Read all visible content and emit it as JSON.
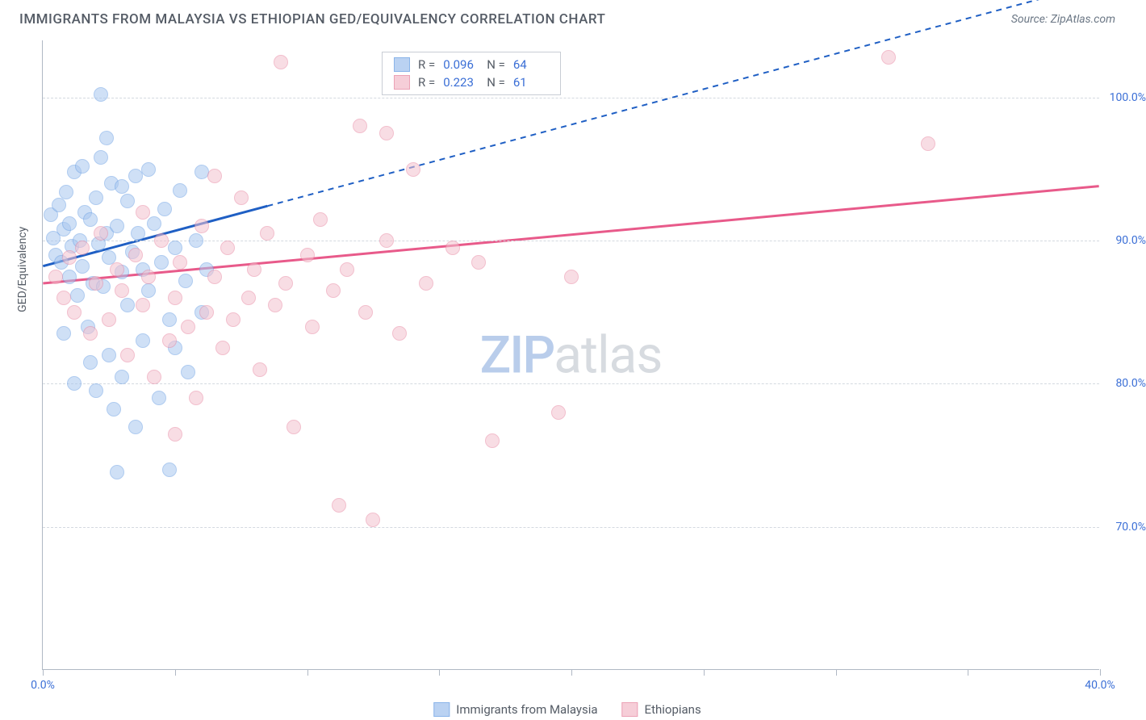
{
  "title": "IMMIGRANTS FROM MALAYSIA VS ETHIOPIAN GED/EQUIVALENCY CORRELATION CHART",
  "source": "Source: ZipAtlas.com",
  "y_axis_label": "GED/Equivalency",
  "watermark_a": "ZIP",
  "watermark_b": "atlas",
  "chart": {
    "type": "scatter",
    "x_range": [
      0,
      40
    ],
    "y_range": [
      60,
      104
    ],
    "y_ticks": [
      70,
      80,
      90,
      100
    ],
    "y_tick_labels": [
      "70.0%",
      "80.0%",
      "90.0%",
      "100.0%"
    ],
    "x_ticks": [
      0,
      5,
      10,
      15,
      20,
      25,
      30,
      35,
      40
    ],
    "x_tick_labels": {
      "0": "0.0%",
      "40": "40.0%"
    },
    "grid_color": "#d4d9e0",
    "axis_color": "#b0b8c4",
    "background": "#ffffff",
    "tick_label_color": "#3b6fd6",
    "series": [
      {
        "name": "Immigrants from Malaysia",
        "fill": "#a9c7ef",
        "stroke": "#6ea2e4",
        "fill_opacity": 0.55,
        "R": "0.096",
        "N": "64",
        "trend": {
          "color": "#1f5fc4",
          "width": 3,
          "solid_to_x": 8.5,
          "x1": 0,
          "y1": 88.2,
          "x2": 40,
          "y2": 108
        },
        "points": [
          [
            0.3,
            91.8
          ],
          [
            0.4,
            90.2
          ],
          [
            0.5,
            89.0
          ],
          [
            0.6,
            92.5
          ],
          [
            0.7,
            88.5
          ],
          [
            0.8,
            90.8
          ],
          [
            0.9,
            93.4
          ],
          [
            1.0,
            91.2
          ],
          [
            1.0,
            87.5
          ],
          [
            1.1,
            89.6
          ],
          [
            1.2,
            94.8
          ],
          [
            1.3,
            86.2
          ],
          [
            1.4,
            90.0
          ],
          [
            1.5,
            95.2
          ],
          [
            1.5,
            88.2
          ],
          [
            1.6,
            92.0
          ],
          [
            1.7,
            84.0
          ],
          [
            1.8,
            91.5
          ],
          [
            1.9,
            87.0
          ],
          [
            2.0,
            93.0
          ],
          [
            2.0,
            79.5
          ],
          [
            2.1,
            89.8
          ],
          [
            2.2,
            95.8
          ],
          [
            2.3,
            86.8
          ],
          [
            2.4,
            90.5
          ],
          [
            2.5,
            82.0
          ],
          [
            2.5,
            88.8
          ],
          [
            2.6,
            94.0
          ],
          [
            2.7,
            78.2
          ],
          [
            2.8,
            91.0
          ],
          [
            3.0,
            87.8
          ],
          [
            3.0,
            80.5
          ],
          [
            3.2,
            92.8
          ],
          [
            3.2,
            85.5
          ],
          [
            3.4,
            89.2
          ],
          [
            3.5,
            94.5
          ],
          [
            3.5,
            77.0
          ],
          [
            3.6,
            90.5
          ],
          [
            3.8,
            83.0
          ],
          [
            3.8,
            88.0
          ],
          [
            4.0,
            95.0
          ],
          [
            4.0,
            86.5
          ],
          [
            4.2,
            91.2
          ],
          [
            4.4,
            79.0
          ],
          [
            4.5,
            88.5
          ],
          [
            4.6,
            92.2
          ],
          [
            4.8,
            84.5
          ],
          [
            4.8,
            74.0
          ],
          [
            5.0,
            89.5
          ],
          [
            5.2,
            93.5
          ],
          [
            5.4,
            87.2
          ],
          [
            5.5,
            80.8
          ],
          [
            5.8,
            90.0
          ],
          [
            6.0,
            94.8
          ],
          [
            6.0,
            85.0
          ],
          [
            6.2,
            88.0
          ],
          [
            2.2,
            100.2
          ],
          [
            2.4,
            97.2
          ],
          [
            2.8,
            73.8
          ],
          [
            1.8,
            81.5
          ],
          [
            5.0,
            82.5
          ],
          [
            0.8,
            83.5
          ],
          [
            1.2,
            80.0
          ],
          [
            3.0,
            93.8
          ]
        ]
      },
      {
        "name": "Ethiopians",
        "fill": "#f4c2cf",
        "stroke": "#e88ba5",
        "fill_opacity": 0.55,
        "R": "0.223",
        "N": "61",
        "trend": {
          "color": "#e85a8a",
          "width": 3,
          "solid_to_x": 40,
          "x1": 0,
          "y1": 87.0,
          "x2": 40,
          "y2": 93.8
        },
        "points": [
          [
            0.5,
            87.5
          ],
          [
            0.8,
            86.0
          ],
          [
            1.0,
            88.8
          ],
          [
            1.2,
            85.0
          ],
          [
            1.5,
            89.5
          ],
          [
            1.8,
            83.5
          ],
          [
            2.0,
            87.0
          ],
          [
            2.2,
            90.5
          ],
          [
            2.5,
            84.5
          ],
          [
            2.8,
            88.0
          ],
          [
            3.0,
            86.5
          ],
          [
            3.2,
            82.0
          ],
          [
            3.5,
            89.0
          ],
          [
            3.8,
            85.5
          ],
          [
            4.0,
            87.5
          ],
          [
            4.2,
            80.5
          ],
          [
            4.5,
            90.0
          ],
          [
            4.8,
            83.0
          ],
          [
            5.0,
            86.0
          ],
          [
            5.2,
            88.5
          ],
          [
            5.5,
            84.0
          ],
          [
            5.8,
            79.0
          ],
          [
            6.0,
            91.0
          ],
          [
            6.2,
            85.0
          ],
          [
            6.5,
            87.5
          ],
          [
            6.8,
            82.5
          ],
          [
            7.0,
            89.5
          ],
          [
            7.2,
            84.5
          ],
          [
            7.5,
            93.0
          ],
          [
            7.8,
            86.0
          ],
          [
            8.0,
            88.0
          ],
          [
            8.2,
            81.0
          ],
          [
            8.5,
            90.5
          ],
          [
            8.8,
            85.5
          ],
          [
            9.0,
            102.5
          ],
          [
            9.2,
            87.0
          ],
          [
            9.5,
            77.0
          ],
          [
            10.0,
            89.0
          ],
          [
            10.2,
            84.0
          ],
          [
            10.5,
            91.5
          ],
          [
            11.0,
            86.5
          ],
          [
            11.2,
            71.5
          ],
          [
            11.5,
            88.0
          ],
          [
            12.0,
            98.0
          ],
          [
            12.2,
            85.0
          ],
          [
            13.0,
            90.0
          ],
          [
            13.5,
            83.5
          ],
          [
            14.0,
            95.0
          ],
          [
            14.5,
            87.0
          ],
          [
            15.5,
            89.5
          ],
          [
            12.5,
            70.5
          ],
          [
            16.5,
            88.5
          ],
          [
            17.0,
            76.0
          ],
          [
            19.5,
            78.0
          ],
          [
            20.0,
            87.5
          ],
          [
            13.0,
            97.5
          ],
          [
            32.0,
            102.8
          ],
          [
            33.5,
            96.8
          ],
          [
            5.0,
            76.5
          ],
          [
            6.5,
            94.5
          ],
          [
            3.8,
            92.0
          ]
        ]
      }
    ]
  },
  "legend_stats": {
    "R_label": "R =",
    "N_label": "N ="
  },
  "bottom_legend": {
    "items": [
      "Immigrants from Malaysia",
      "Ethiopians"
    ]
  }
}
